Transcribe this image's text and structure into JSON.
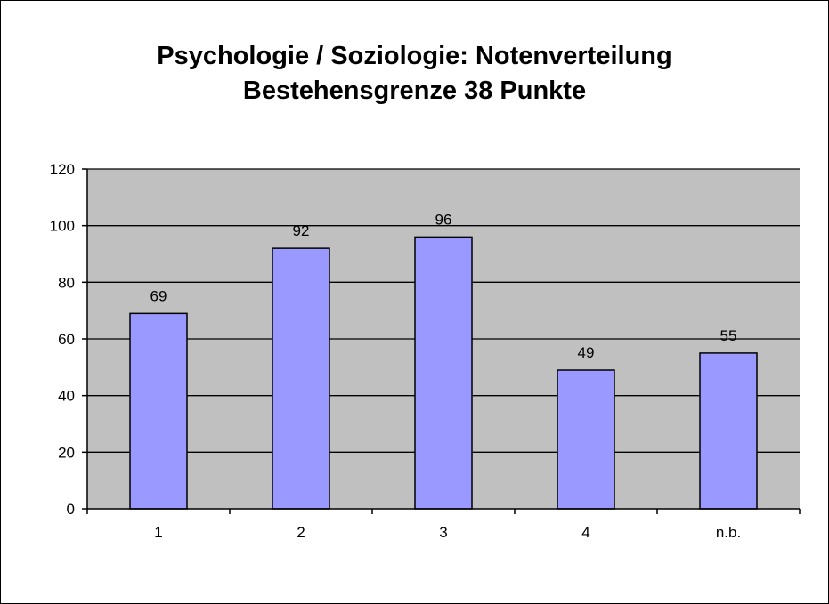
{
  "chart_data": {
    "type": "bar",
    "title_lines": [
      "Psychologie / Soziologie: Notenverteilung",
      "Bestehensgrenze 38 Punkte"
    ],
    "categories": [
      "1",
      "2",
      "3",
      "4",
      "n.b."
    ],
    "values": [
      69,
      92,
      96,
      49,
      55
    ],
    "data_labels": [
      "69",
      "92",
      "96",
      "49",
      "55"
    ],
    "ylim": [
      0,
      120
    ],
    "yticks": [
      0,
      20,
      40,
      60,
      80,
      100,
      120
    ],
    "ytick_labels": [
      "0",
      "20",
      "40",
      "60",
      "80",
      "100",
      "120"
    ],
    "grid": true,
    "legend": "none",
    "colors": {
      "bar_fill": "#9999ff",
      "plot_background": "#c0c0c0",
      "gridline": "#000000"
    }
  }
}
